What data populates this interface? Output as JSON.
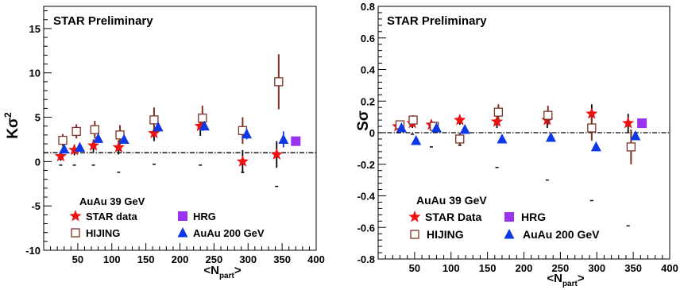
{
  "chart_data": [
    {
      "type": "scatter",
      "title": "STAR Preliminary",
      "xlabel": "<N",
      "xlabel_sub": "part",
      "xlabel_end": ">",
      "ylabel": "Kσ",
      "ylabel_sup": "2",
      "xlim": [
        0,
        400
      ],
      "ylim": [
        -10,
        17.5
      ],
      "xticks": [
        50,
        100,
        150,
        200,
        250,
        300,
        350,
        400
      ],
      "yticks": [
        -10,
        -5,
        0,
        5,
        10,
        15
      ],
      "ref_line": 1.0,
      "legend_title": "AuAu 39 GeV",
      "legend": {
        "star": "STAR data",
        "hrg": "HRG",
        "hijing": "HIJING",
        "auau200": "AuAu 200 GeV"
      },
      "colors": {
        "star": "#ee1111",
        "hrg": "#9933ee",
        "hijing": "#7a3325",
        "auau200": "#0d38e6"
      },
      "series": [
        {
          "name": "STAR data",
          "marker": "star",
          "x": [
            25,
            45,
            73,
            110,
            162,
            230,
            292,
            342
          ],
          "y": [
            0.6,
            1.3,
            1.8,
            1.6,
            3.2,
            4.0,
            0.0,
            0.8
          ],
          "err": [
            0.5,
            0.6,
            0.7,
            0.8,
            0.9,
            1.1,
            1.3,
            1.5
          ],
          "sys_low": [
            -0.4,
            -0.4,
            -0.4,
            -1.2,
            -0.3,
            -0.4,
            -1.2,
            -2.8
          ]
        },
        {
          "name": "HIJING",
          "marker": "open-square",
          "x": [
            28,
            48,
            75,
            112,
            162,
            233,
            292,
            345
          ],
          "y": [
            2.4,
            3.4,
            3.6,
            3.0,
            4.7,
            4.9,
            3.5,
            9.0
          ],
          "err": [
            0.7,
            0.8,
            1.0,
            1.1,
            1.4,
            1.4,
            1.5,
            3.1
          ]
        },
        {
          "name": "AuAu 200 GeV",
          "marker": "triangle",
          "x": [
            30,
            53,
            80,
            118,
            168,
            236,
            298,
            352
          ],
          "y": [
            1.4,
            1.6,
            2.6,
            2.5,
            3.9,
            4.0,
            3.1,
            2.5
          ],
          "err": [
            0.2,
            0.3,
            0.3,
            0.3,
            0.3,
            0.4,
            0.6,
            0.9
          ]
        },
        {
          "name": "HRG",
          "marker": "filled-square",
          "x": [
            370
          ],
          "y": [
            2.3
          ],
          "err": [
            0
          ]
        }
      ]
    },
    {
      "type": "scatter",
      "title": "STAR Preliminary",
      "xlabel": "<N",
      "xlabel_sub": "part",
      "xlabel_end": ">",
      "ylabel": "Sσ",
      "ylabel_sup": "",
      "xlim": [
        0,
        400
      ],
      "ylim": [
        -0.8,
        0.8
      ],
      "xticks": [
        50,
        100,
        150,
        200,
        250,
        300,
        350,
        400
      ],
      "yticks": [
        -0.8,
        -0.6,
        -0.4,
        -0.2,
        0,
        0.2,
        0.4,
        0.6,
        0.8
      ],
      "ref_line": 0.0,
      "legend_title": "AuAu 39 GeV",
      "legend": {
        "star": "STAR Data",
        "hrg": "HRG",
        "hijing": "HIJING",
        "auau200": "AuAu 200 GeV"
      },
      "colors": {
        "star": "#ee1111",
        "hrg": "#9933ee",
        "hijing": "#7a3325",
        "auau200": "#0d38e6"
      },
      "series": [
        {
          "name": "STAR Data",
          "marker": "star",
          "x": [
            27,
            47,
            73,
            112,
            163,
            232,
            293,
            343
          ],
          "y": [
            0.04,
            0.06,
            0.05,
            0.08,
            0.07,
            0.08,
            0.12,
            0.06
          ],
          "err": [
            0.02,
            0.03,
            0.03,
            0.03,
            0.04,
            0.05,
            0.06,
            0.06
          ],
          "sys_low": [
            0.0,
            -0.01,
            -0.09,
            -0.08,
            -0.22,
            -0.3,
            -0.43,
            -0.59
          ]
        },
        {
          "name": "HIJING",
          "marker": "open-square",
          "x": [
            30,
            48,
            77,
            112,
            165,
            233,
            293,
            347
          ],
          "y": [
            0.05,
            0.08,
            0.04,
            -0.04,
            0.13,
            0.11,
            0.03,
            -0.09
          ],
          "err": [
            0.02,
            0.03,
            0.03,
            0.04,
            0.05,
            0.06,
            0.08,
            0.11
          ]
        },
        {
          "name": "AuAu 200 GeV",
          "marker": "triangle",
          "x": [
            32,
            52,
            80,
            119,
            170,
            237,
            299,
            353
          ],
          "y": [
            0.03,
            -0.05,
            0.03,
            0.02,
            -0.04,
            -0.03,
            -0.09,
            -0.02
          ],
          "err": [
            0.01,
            0.01,
            0.01,
            0.01,
            0.01,
            0.01,
            0.02,
            0.02
          ]
        },
        {
          "name": "HRG",
          "marker": "filled-square",
          "x": [
            362
          ],
          "y": [
            0.06
          ],
          "err": [
            0
          ]
        }
      ]
    }
  ]
}
